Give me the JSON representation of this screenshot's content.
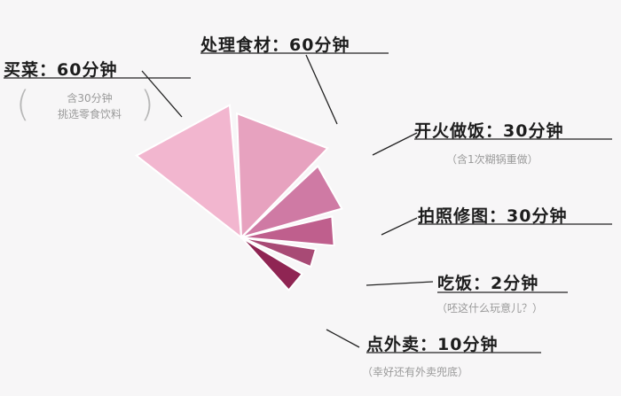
{
  "chart_data": {
    "type": "pie",
    "title": "",
    "slices": [
      {
        "label": "买菜：60分钟",
        "value": 60,
        "note": [
          "含30分钟",
          "挑选零食饮料"
        ],
        "color": "#f2b6cf"
      },
      {
        "label": "处理食材：60分钟",
        "value": 60,
        "note": [],
        "color": "#e7a2bf"
      },
      {
        "label": "开火做饭：30分钟",
        "value": 30,
        "note": [
          "（含1次糊锅重做）"
        ],
        "color": "#cf7aa4"
      },
      {
        "label": "拍照修图：30分钟",
        "value": 30,
        "note": [],
        "color": "#bf5f8d"
      },
      {
        "label": "吃饭：2分钟",
        "value": 2,
        "note": [
          "（呸这什么玩意儿？）"
        ],
        "color": "#a84a75"
      },
      {
        "label": "点外卖：10分钟",
        "value": 10,
        "note": [
          "（幸好还有外卖兜底）"
        ],
        "color": "#8f2553"
      }
    ]
  }
}
